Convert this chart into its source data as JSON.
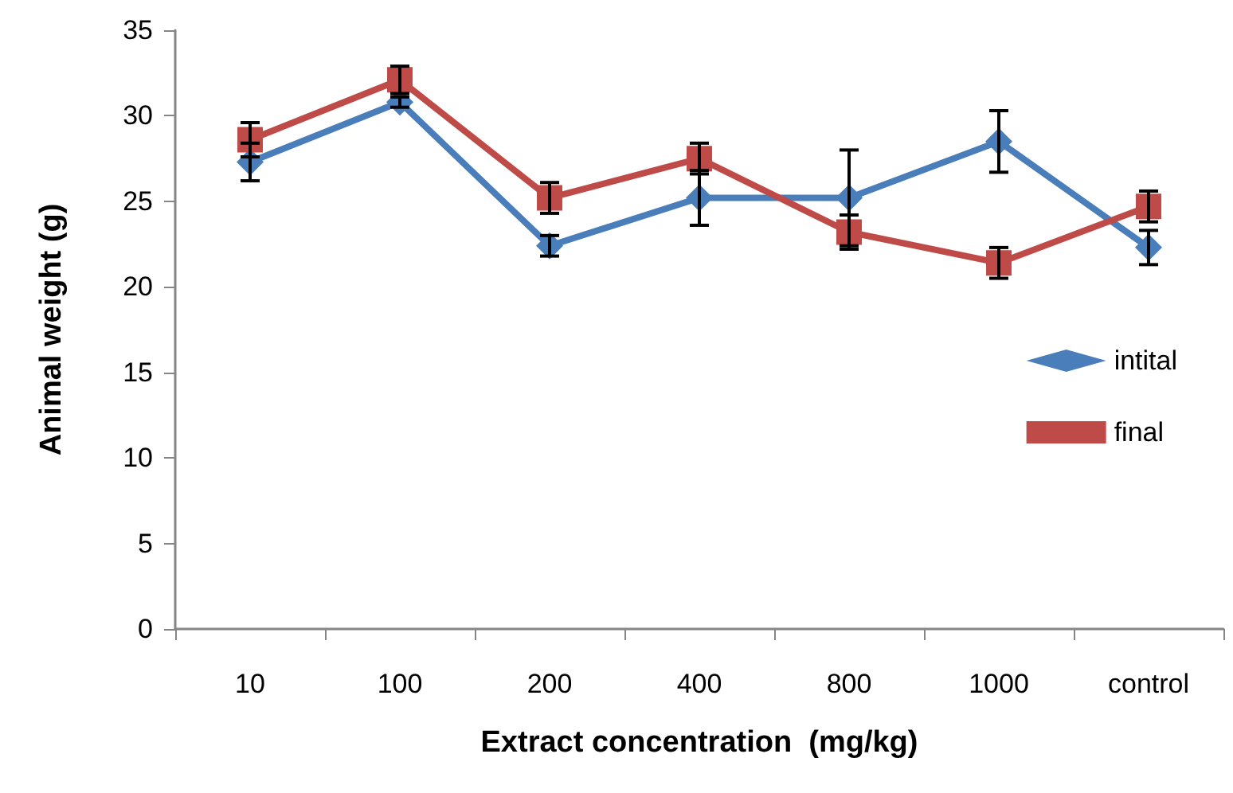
{
  "chart_data": {
    "type": "line",
    "xlabel": "Extract concentration  (mg/kg)",
    "ylabel": "Animal weight (g)",
    "categories": [
      "10",
      "100",
      "200",
      "400",
      "800",
      "1000",
      "control"
    ],
    "series": [
      {
        "name": "intital",
        "color": "#4a7ebb",
        "marker": "diamond",
        "values": [
          27.3,
          30.8,
          22.4,
          25.2,
          25.2,
          28.5,
          22.3
        ],
        "errors": [
          1.1,
          0.3,
          0.6,
          1.6,
          2.8,
          1.8,
          1.0
        ]
      },
      {
        "name": "final",
        "color": "#be4b48",
        "marker": "square",
        "values": [
          28.6,
          32.1,
          25.2,
          27.5,
          23.2,
          21.4,
          24.7
        ],
        "errors": [
          1.0,
          0.8,
          0.9,
          0.9,
          1.0,
          0.9,
          0.9
        ]
      }
    ],
    "ylim": [
      0,
      35
    ],
    "yticks": [
      0,
      5,
      10,
      15,
      20,
      25,
      30,
      35
    ],
    "grid": false,
    "legend": "right"
  }
}
